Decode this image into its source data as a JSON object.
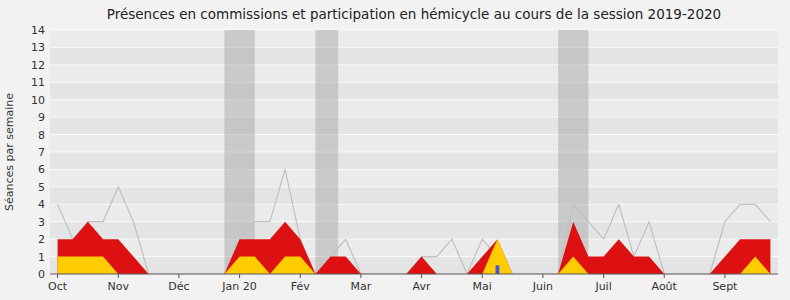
{
  "chart_data": {
    "type": "area",
    "title": "Présences en commissions et participation en hémicycle au cours de la session 2019-2020",
    "y_label": "Séances par semaine",
    "categories": [
      "Oct",
      null,
      null,
      null,
      "Nov",
      null,
      null,
      null,
      "Déc",
      null,
      null,
      null,
      "Jan 20",
      null,
      null,
      null,
      "Fév",
      null,
      null,
      null,
      "Mar",
      null,
      null,
      null,
      "Avr",
      null,
      null,
      null,
      "Mai",
      null,
      null,
      null,
      "Juin",
      null,
      null,
      null,
      "Juil",
      null,
      null,
      null,
      "Août",
      null,
      null,
      null,
      "Sept",
      null,
      null,
      null
    ],
    "series": [
      {
        "type": "line",
        "color": "#c0c0c0",
        "values": [
          4,
          2,
          3,
          3,
          5,
          3,
          0,
          0,
          0,
          0,
          0,
          0,
          2,
          3,
          3,
          6,
          2,
          0,
          1,
          2,
          0,
          0,
          0,
          0,
          1,
          1,
          2,
          0,
          2,
          1,
          0,
          0,
          0,
          0,
          4,
          3,
          2,
          4,
          1,
          3,
          0,
          0,
          0,
          0,
          3,
          4,
          4,
          3
        ]
      },
      {
        "type": "area",
        "color": "#dd1111",
        "values": [
          2,
          2,
          3,
          2,
          2,
          1,
          0,
          0,
          0,
          0,
          0,
          0,
          2,
          2,
          2,
          3,
          2,
          0,
          1,
          1,
          0,
          0,
          0,
          0,
          1,
          0,
          0,
          0,
          1,
          2,
          0,
          0,
          0,
          0,
          3,
          1,
          1,
          2,
          1,
          1,
          0,
          0,
          0,
          0,
          1,
          2,
          2,
          2
        ]
      },
      {
        "type": "area",
        "color": "#ffcc00",
        "values": [
          1,
          1,
          1,
          1,
          0,
          0,
          0,
          0,
          0,
          0,
          0,
          0,
          1,
          1,
          0,
          1,
          1,
          0,
          0,
          0,
          0,
          0,
          0,
          0,
          0,
          0,
          0,
          0,
          0,
          2,
          0,
          0,
          0,
          0,
          1,
          0,
          0,
          0,
          0,
          0,
          0,
          0,
          0,
          0,
          0,
          0,
          1,
          0
        ]
      },
      {
        "type": "bar",
        "color": "#4455dd",
        "values": [
          null,
          null,
          null,
          null,
          null,
          null,
          null,
          null,
          null,
          null,
          null,
          null,
          null,
          null,
          null,
          null,
          null,
          null,
          null,
          null,
          null,
          null,
          null,
          null,
          null,
          null,
          null,
          null,
          null,
          0.5,
          null,
          null,
          null,
          null,
          null,
          null,
          null,
          null,
          null,
          null,
          null,
          null,
          null,
          null,
          null,
          null,
          null,
          null
        ]
      }
    ],
    "shaded_regions": [
      [
        11.5,
        13.5
      ],
      [
        17.5,
        19.0
      ],
      [
        33.5,
        35.5
      ]
    ],
    "ylim": [
      0,
      14
    ],
    "yticks": [
      0,
      1,
      2,
      3,
      4,
      5,
      6,
      7,
      8,
      9,
      10,
      11,
      12,
      13,
      14
    ],
    "grid": true
  }
}
